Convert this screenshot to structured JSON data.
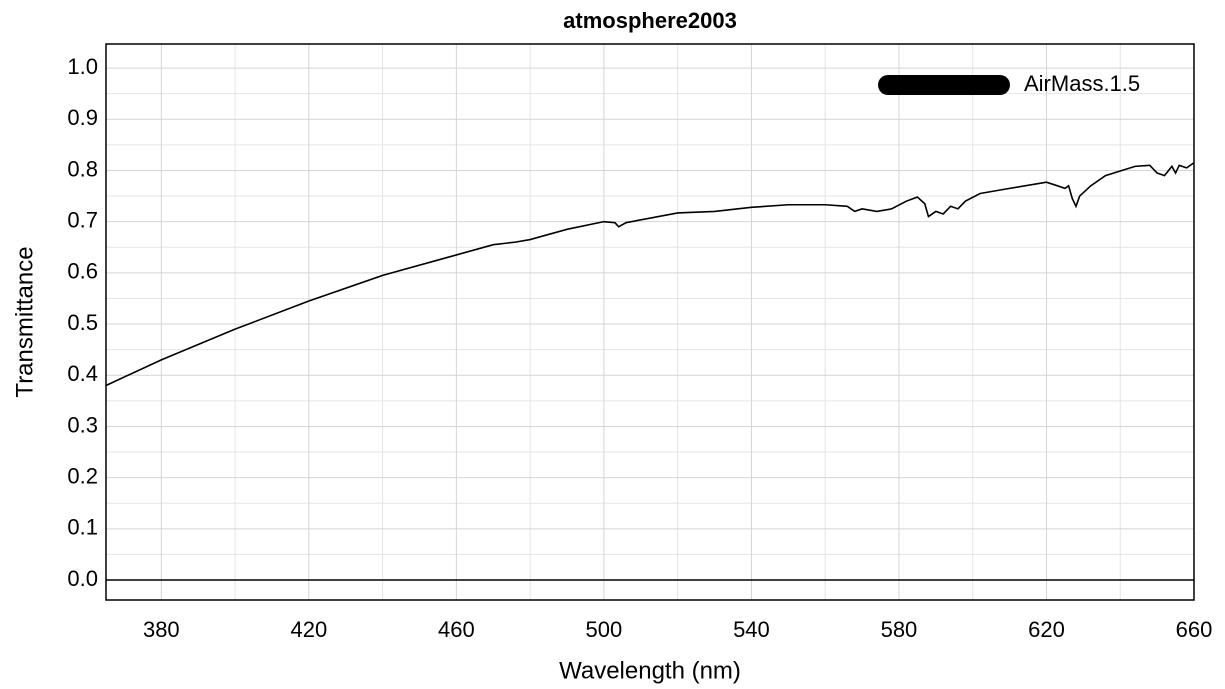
{
  "chart_data": {
    "type": "line",
    "title": "atmosphere2003",
    "x_label": "Wavelength (nm)",
    "y_label": "Transmittance",
    "xlim": [
      365,
      660
    ],
    "ylim": [
      -0.039,
      1.047
    ],
    "xticks": [
      380,
      420,
      460,
      500,
      540,
      580,
      620,
      660
    ],
    "x_minor_ticks": [
      400,
      440,
      480,
      520,
      560,
      600,
      640
    ],
    "yticks": [
      {
        "value": 0,
        "label": "0.0"
      },
      0.1,
      0.2,
      0.3,
      0.4,
      0.5,
      0.6,
      0.7,
      0.8,
      0.9,
      {
        "value": 1,
        "label": "1.0"
      }
    ],
    "y_minor_ticks": [
      0.05,
      0.15,
      0.25,
      0.35,
      0.45,
      0.55,
      0.65,
      0.75,
      0.85,
      0.95
    ],
    "grid": true,
    "legend": "upper right",
    "x": [
      365,
      380,
      400,
      420,
      440,
      460,
      470,
      476,
      480,
      490,
      500,
      503,
      504,
      506,
      520,
      530,
      540,
      550,
      560,
      566,
      568,
      570,
      574,
      578,
      582,
      585,
      587,
      588,
      590,
      592,
      594,
      596,
      598,
      602,
      610,
      620,
      623,
      625,
      626,
      627,
      628,
      629,
      632,
      636,
      644,
      648,
      650,
      652,
      654,
      655,
      656,
      658,
      660
    ],
    "series": [
      {
        "name": "AirMass.1.5",
        "color": "#000000",
        "values": [
          0.38,
          0.43,
          0.49,
          0.545,
          0.595,
          0.635,
          0.655,
          0.66,
          0.665,
          0.685,
          0.7,
          0.698,
          0.69,
          0.698,
          0.717,
          0.72,
          0.728,
          0.733,
          0.733,
          0.73,
          0.72,
          0.725,
          0.72,
          0.725,
          0.74,
          0.748,
          0.735,
          0.71,
          0.72,
          0.715,
          0.73,
          0.725,
          0.74,
          0.755,
          0.765,
          0.777,
          0.77,
          0.765,
          0.77,
          0.745,
          0.73,
          0.75,
          0.77,
          0.79,
          0.808,
          0.81,
          0.795,
          0.79,
          0.808,
          0.795,
          0.81,
          0.805,
          0.815
        ]
      }
    ]
  }
}
